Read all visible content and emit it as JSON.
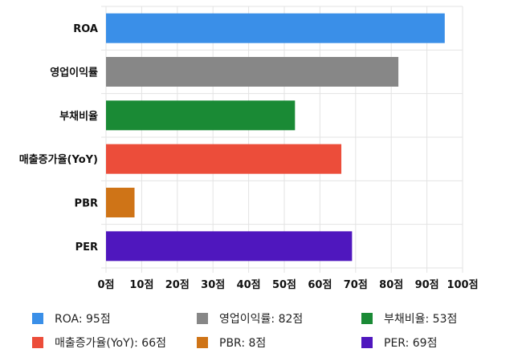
{
  "chart_data": {
    "type": "bar",
    "orientation": "horizontal",
    "categories": [
      "ROA",
      "영업이익률",
      "부채비율",
      "매출증가율(YoY)",
      "PBR",
      "PER"
    ],
    "values": [
      95,
      82,
      53,
      66,
      8,
      69
    ],
    "colors": [
      "#3a8fe8",
      "#878787",
      "#1a8a35",
      "#ec4d3a",
      "#cf7417",
      "#4f17be"
    ],
    "xlim": [
      0,
      100
    ],
    "xticks": [
      0,
      10,
      20,
      30,
      40,
      50,
      60,
      70,
      80,
      90,
      100
    ],
    "tick_unit": "점",
    "grid": true,
    "legend_position": "bottom",
    "legend": [
      {
        "label": "ROA: 95점",
        "color": "#3a8fe8"
      },
      {
        "label": "영업이익률: 82점",
        "color": "#878787"
      },
      {
        "label": "부채비율: 53점",
        "color": "#1a8a35"
      },
      {
        "label": "매출증가율(YoY): 66점",
        "color": "#ec4d3a"
      },
      {
        "label": "PBR: 8점",
        "color": "#cf7417"
      },
      {
        "label": "PER: 69점",
        "color": "#4f17be"
      }
    ]
  }
}
